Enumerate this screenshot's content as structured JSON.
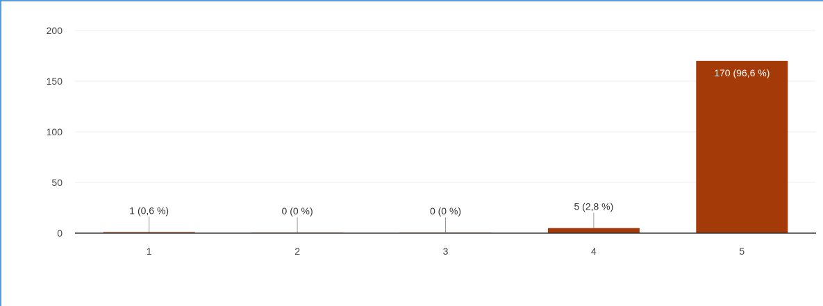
{
  "chart_data": {
    "type": "bar",
    "categories": [
      "1",
      "2",
      "3",
      "4",
      "5"
    ],
    "values": [
      1,
      0,
      0,
      5,
      170
    ],
    "data_labels": [
      "1 (0,6 %)",
      "0 (0 %)",
      "0 (0 %)",
      "5 (2,8 %)",
      "170 (96,6 %)"
    ],
    "y_ticks": [
      0,
      50,
      100,
      150,
      200
    ],
    "ylim": [
      0,
      200
    ],
    "grid": true,
    "legend": "none",
    "colors": {
      "bar": "#a33a07",
      "grid": "#eeeeee",
      "axis": "#333333",
      "frame": "#5b9bd5"
    }
  }
}
